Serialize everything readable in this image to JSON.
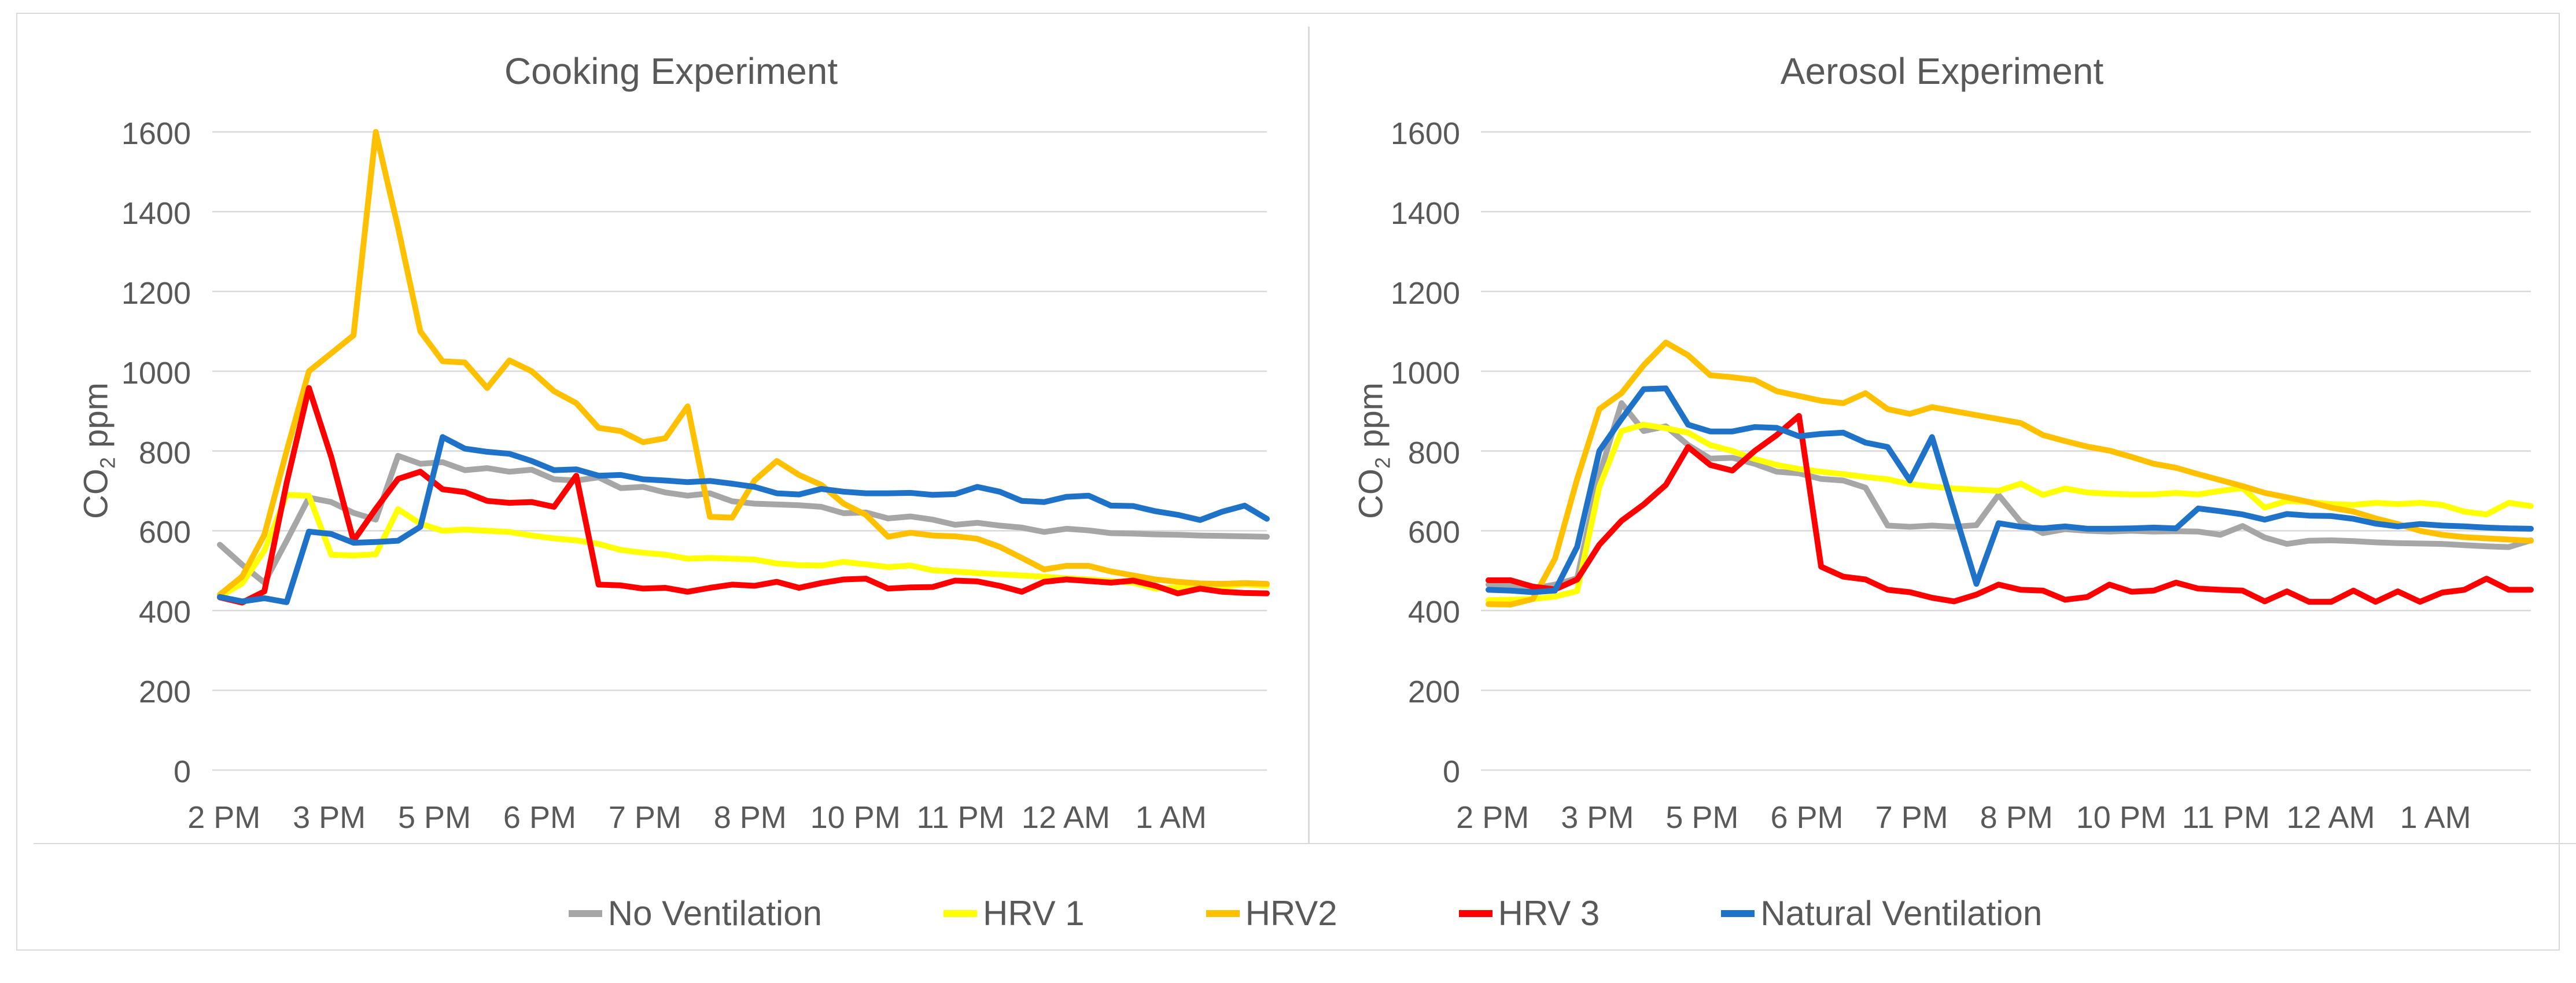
{
  "chart_data": [
    {
      "type": "line",
      "title": "Cooking Experiment",
      "ylabel_prefix": "CO",
      "ylabel_sub": "2",
      "ylabel_suffix": " ppm",
      "ylabel": "CO2 ppm",
      "ylim": [
        0,
        1600
      ],
      "yticks": [
        0,
        200,
        400,
        600,
        800,
        1000,
        1200,
        1400,
        1600
      ],
      "x_labels": [
        "2 PM",
        "3 PM",
        "5 PM",
        "6 PM",
        "7 PM",
        "8 PM",
        "10 PM",
        "11 PM",
        "12 AM",
        "1 AM"
      ],
      "grid": true,
      "series": [
        {
          "name": "No Ventilation",
          "color": "#a6a6a6",
          "values": [
            565,
            515,
            470,
            575,
            683,
            672,
            645,
            628,
            788,
            768,
            772,
            752,
            757,
            748,
            753,
            729,
            726,
            734,
            707,
            710,
            696,
            688,
            694,
            674,
            668,
            666,
            664,
            660,
            644,
            646,
            631,
            636,
            628,
            615,
            620,
            613,
            608,
            597,
            605,
            601,
            594,
            593,
            591,
            590,
            588,
            587,
            586,
            585
          ]
        },
        {
          "name": "HRV 1",
          "color": "#ffff00",
          "values": [
            435,
            468,
            550,
            690,
            688,
            540,
            538,
            541,
            654,
            618,
            600,
            603,
            600,
            597,
            588,
            581,
            576,
            567,
            552,
            545,
            540,
            530,
            532,
            530,
            528,
            518,
            514,
            513,
            522,
            516,
            509,
            513,
            501,
            498,
            494,
            491,
            488,
            485,
            481,
            478,
            474,
            470,
            455,
            458,
            466,
            460,
            466,
            462
          ]
        },
        {
          "name": "HRV2",
          "color": "#ffc000",
          "values": [
            440,
            485,
            590,
            800,
            1000,
            1045,
            1090,
            1600,
            1360,
            1100,
            1025,
            1022,
            958,
            1027,
            1000,
            950,
            920,
            858,
            850,
            822,
            832,
            912,
            635,
            633,
            726,
            775,
            740,
            715,
            668,
            640,
            585,
            595,
            588,
            586,
            580,
            560,
            532,
            503,
            512,
            512,
            498,
            488,
            478,
            472,
            468,
            467,
            469,
            467
          ]
        },
        {
          "name": "HRV 3",
          "color": "#ff0000",
          "values": [
            433,
            420,
            448,
            720,
            958,
            785,
            575,
            655,
            730,
            748,
            704,
            697,
            675,
            670,
            672,
            660,
            738,
            465,
            463,
            455,
            457,
            447,
            457,
            465,
            462,
            472,
            457,
            469,
            478,
            480,
            455,
            458,
            459,
            475,
            473,
            462,
            447,
            472,
            478,
            474,
            470,
            475,
            462,
            443,
            455,
            447,
            444,
            443
          ]
        },
        {
          "name": "Natural Ventilation",
          "color": "#1e73c8",
          "values": [
            434,
            423,
            431,
            421,
            598,
            592,
            570,
            572,
            575,
            610,
            835,
            806,
            798,
            793,
            775,
            752,
            754,
            738,
            740,
            729,
            726,
            722,
            725,
            718,
            710,
            694,
            691,
            705,
            698,
            694,
            694,
            695,
            690,
            692,
            710,
            698,
            675,
            672,
            685,
            688,
            663,
            662,
            649,
            640,
            627,
            648,
            663,
            630
          ]
        }
      ]
    },
    {
      "type": "line",
      "title": "Aerosol Experiment",
      "ylabel_prefix": "CO",
      "ylabel_sub": "2",
      "ylabel_suffix": " ppm",
      "ylabel": "CO2 ppm",
      "ylim": [
        0,
        1600
      ],
      "yticks": [
        0,
        200,
        400,
        600,
        800,
        1000,
        1200,
        1400,
        1600
      ],
      "x_labels": [
        "2 PM",
        "3 PM",
        "5 PM",
        "6 PM",
        "7 PM",
        "8 PM",
        "10 PM",
        "11 PM",
        "12 AM",
        "1 AM"
      ],
      "grid": true,
      "series": [
        {
          "name": "No Ventilation",
          "color": "#a6a6a6",
          "values": [
            465,
            463,
            455,
            465,
            481,
            740,
            920,
            850,
            862,
            815,
            781,
            783,
            768,
            748,
            744,
            730,
            726,
            708,
            613,
            610,
            613,
            610,
            614,
            690,
            622,
            594,
            604,
            600,
            598,
            600,
            598,
            599,
            598,
            590,
            612,
            583,
            567,
            575,
            576,
            574,
            571,
            569,
            568,
            567,
            564,
            561,
            559,
            576
          ]
        },
        {
          "name": "HRV 1",
          "color": "#ffff00",
          "values": [
            426,
            427,
            429,
            435,
            449,
            710,
            850,
            866,
            857,
            846,
            815,
            800,
            780,
            765,
            755,
            748,
            742,
            735,
            729,
            717,
            711,
            706,
            703,
            700,
            718,
            690,
            706,
            696,
            693,
            691,
            691,
            695,
            691,
            700,
            707,
            658,
            675,
            672,
            667,
            665,
            670,
            667,
            670,
            665,
            648,
            641,
            670,
            662
          ]
        },
        {
          "name": "HRV2",
          "color": "#ffc000",
          "values": [
            416,
            415,
            429,
            530,
            730,
            905,
            945,
            1015,
            1072,
            1040,
            990,
            985,
            978,
            950,
            938,
            926,
            920,
            945,
            905,
            893,
            910,
            900,
            890,
            880,
            870,
            840,
            825,
            811,
            801,
            785,
            768,
            758,
            742,
            727,
            712,
            695,
            684,
            672,
            658,
            648,
            631,
            617,
            600,
            590,
            584,
            581,
            578,
            575
          ]
        },
        {
          "name": "HRV 3",
          "color": "#ff0000",
          "values": [
            476,
            476,
            460,
            453,
            478,
            565,
            625,
            666,
            715,
            810,
            765,
            751,
            800,
            840,
            888,
            510,
            485,
            478,
            452,
            446,
            432,
            423,
            440,
            465,
            452,
            450,
            427,
            434,
            465,
            447,
            450,
            470,
            455,
            452,
            450,
            423,
            448,
            422,
            422,
            450,
            422,
            448,
            422,
            445,
            452,
            480,
            452,
            452
          ]
        },
        {
          "name": "Natural Ventilation",
          "color": "#1e73c8",
          "values": [
            452,
            450,
            446,
            450,
            560,
            800,
            880,
            955,
            957,
            866,
            849,
            849,
            860,
            858,
            837,
            843,
            846,
            821,
            810,
            726,
            835,
            650,
            467,
            619,
            610,
            606,
            611,
            605,
            605,
            606,
            608,
            606,
            656,
            649,
            641,
            628,
            642,
            638,
            637,
            630,
            618,
            611,
            617,
            613,
            611,
            608,
            606,
            605
          ]
        }
      ]
    }
  ],
  "legend": {
    "entries": [
      {
        "label": "No Ventilation",
        "color": "#a6a6a6"
      },
      {
        "label": "HRV 1",
        "color": "#ffff00"
      },
      {
        "label": "HRV2",
        "color": "#ffc000"
      },
      {
        "label": "HRV 3",
        "color": "#ff0000"
      },
      {
        "label": "Natural Ventilation",
        "color": "#1e73c8"
      }
    ]
  }
}
